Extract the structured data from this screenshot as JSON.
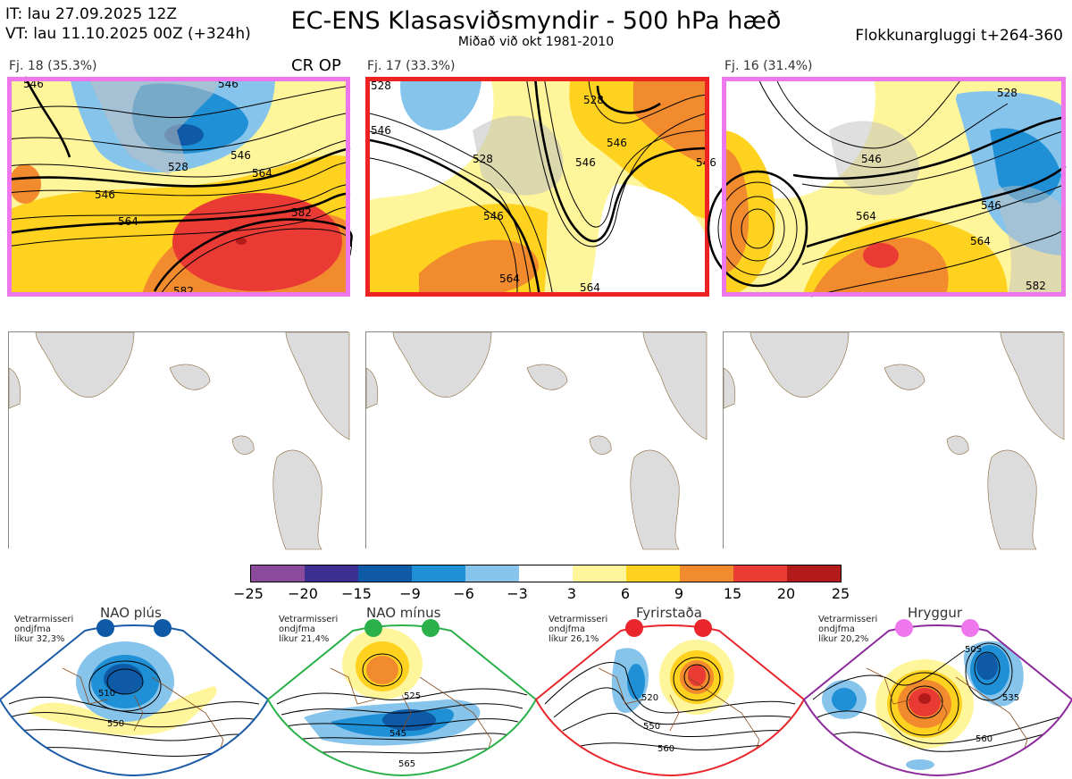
{
  "header": {
    "it": "IT: lau 27.09.2025 12Z",
    "vt": "VT: lau 11.10.2025 00Z  (+324h)",
    "title": "EC-ENS Klasasviðsmyndir - 500 hPa hæð",
    "subtitle": "Miðað við okt 1981-2010",
    "window": "Flokkunargluggi t+264-360"
  },
  "panels": [
    {
      "label": "Fj. 18 (35.3%)",
      "members": 18,
      "percent": 35.3,
      "border_color": "#ee77ee",
      "contours": [
        "546",
        "546",
        "528",
        "546",
        "564",
        "546",
        "564",
        "582",
        "582"
      ]
    },
    {
      "label": "Fj. 17 (33.3%)",
      "members": 17,
      "percent": 33.3,
      "border_color": "#ee2222",
      "contours": [
        "528",
        "528",
        "546",
        "546",
        "528",
        "546",
        "546",
        "564",
        "564",
        "546"
      ]
    },
    {
      "label": "Fj. 16 (31.4%)",
      "members": 16,
      "percent": 31.4,
      "border_color": "#ee77ee",
      "contours": [
        "528",
        "546",
        "546",
        "564",
        "564",
        "582"
      ]
    }
  ],
  "crop_label": "CR OP",
  "colorbar": {
    "ticks": [
      "−25",
      "−20",
      "−15",
      "−9",
      "−6",
      "−3",
      "3",
      "6",
      "9",
      "15",
      "20",
      "25"
    ],
    "colors": [
      "#8c4a9c",
      "#3d2f91",
      "#0e5aa6",
      "#1f8fd6",
      "#86c4ec",
      "#ffffff",
      "#fff59a",
      "#ffd21f",
      "#f28a2e",
      "#ea3a34",
      "#b31a1a"
    ]
  },
  "regimes": [
    {
      "name": "NAO plús",
      "note": [
        "Vetrarmisseri",
        "ondjfma",
        "líkur 32,3%"
      ],
      "dot_color": "#0e5aa6",
      "frame_color": "#1a5aa6",
      "contours": [
        "510",
        "550"
      ]
    },
    {
      "name": "NAO mínus",
      "note": [
        "Vetrarmisseri",
        "ondjfma",
        "líkur 21,4%"
      ],
      "dot_color": "#2bb04a",
      "frame_color": "#2bb04a",
      "contours": [
        "525",
        "545",
        "565"
      ]
    },
    {
      "name": "Fyrirstaða",
      "note": [
        "Vetrarmisseri",
        "ondjfma",
        "líkur 26,1%"
      ],
      "dot_color": "#e8262b",
      "frame_color": "#e8262b",
      "contours": [
        "520",
        "550",
        "560"
      ]
    },
    {
      "name": "Hryggur",
      "note": [
        "Vetrarmisseri",
        "ondjfma",
        "líkur 20,2%"
      ],
      "dot_color": "#ee77ee",
      "frame_color": "#8c2a9c",
      "contours": [
        "505",
        "535",
        "560"
      ]
    }
  ]
}
